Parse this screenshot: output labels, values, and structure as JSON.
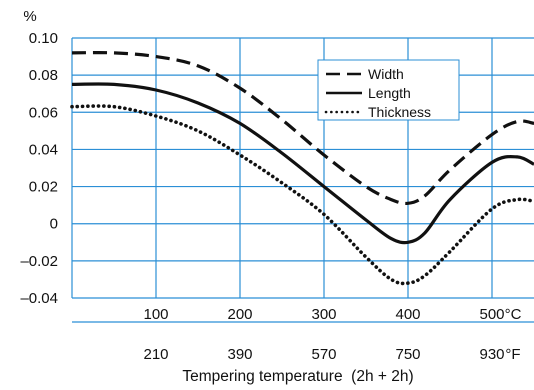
{
  "chart_data": {
    "type": "line",
    "xlabel": "Tempering temperature  (2h + 2h)",
    "ylabel_unit": "%",
    "xlim": [
      0,
      550
    ],
    "ylim": [
      -0.04,
      0.1
    ],
    "grid": true,
    "legend_position": "top-right",
    "y_ticks": [
      "0.10",
      "0.08",
      "0.06",
      "0.04",
      "0.02",
      "0",
      "–0.02",
      "–0.04"
    ],
    "x_ticks_celsius": [
      "100",
      "200",
      "300",
      "400",
      "500"
    ],
    "x_unit_celsius": "°C",
    "x_ticks_fahrenheit": [
      "210",
      "390",
      "570",
      "750",
      "930"
    ],
    "x_unit_fahrenheit": "°F",
    "series": [
      {
        "name": "Width",
        "style": "dashed",
        "x": [
          0,
          50,
          100,
          150,
          200,
          250,
          300,
          350,
          380,
          400,
          420,
          450,
          500,
          530,
          550
        ],
        "y": [
          0.092,
          0.092,
          0.09,
          0.085,
          0.073,
          0.056,
          0.037,
          0.02,
          0.013,
          0.011,
          0.015,
          0.029,
          0.048,
          0.055,
          0.054
        ]
      },
      {
        "name": "Length",
        "style": "solid",
        "x": [
          0,
          50,
          100,
          150,
          200,
          250,
          300,
          350,
          380,
          400,
          420,
          450,
          500,
          530,
          550
        ],
        "y": [
          0.075,
          0.075,
          0.072,
          0.065,
          0.054,
          0.038,
          0.02,
          0.002,
          -0.008,
          -0.01,
          -0.005,
          0.013,
          0.033,
          0.036,
          0.032
        ]
      },
      {
        "name": "Thickness",
        "style": "dotted",
        "x": [
          0,
          50,
          100,
          150,
          200,
          250,
          300,
          350,
          380,
          400,
          420,
          450,
          500,
          530,
          550
        ],
        "y": [
          0.063,
          0.063,
          0.058,
          0.05,
          0.037,
          0.022,
          0.005,
          -0.018,
          -0.03,
          -0.032,
          -0.028,
          -0.015,
          0.008,
          0.013,
          0.012
        ]
      }
    ],
    "colors": {
      "grid": "#2b8fd6",
      "line": "#111111",
      "legend_border": "#2b8fd6"
    }
  }
}
